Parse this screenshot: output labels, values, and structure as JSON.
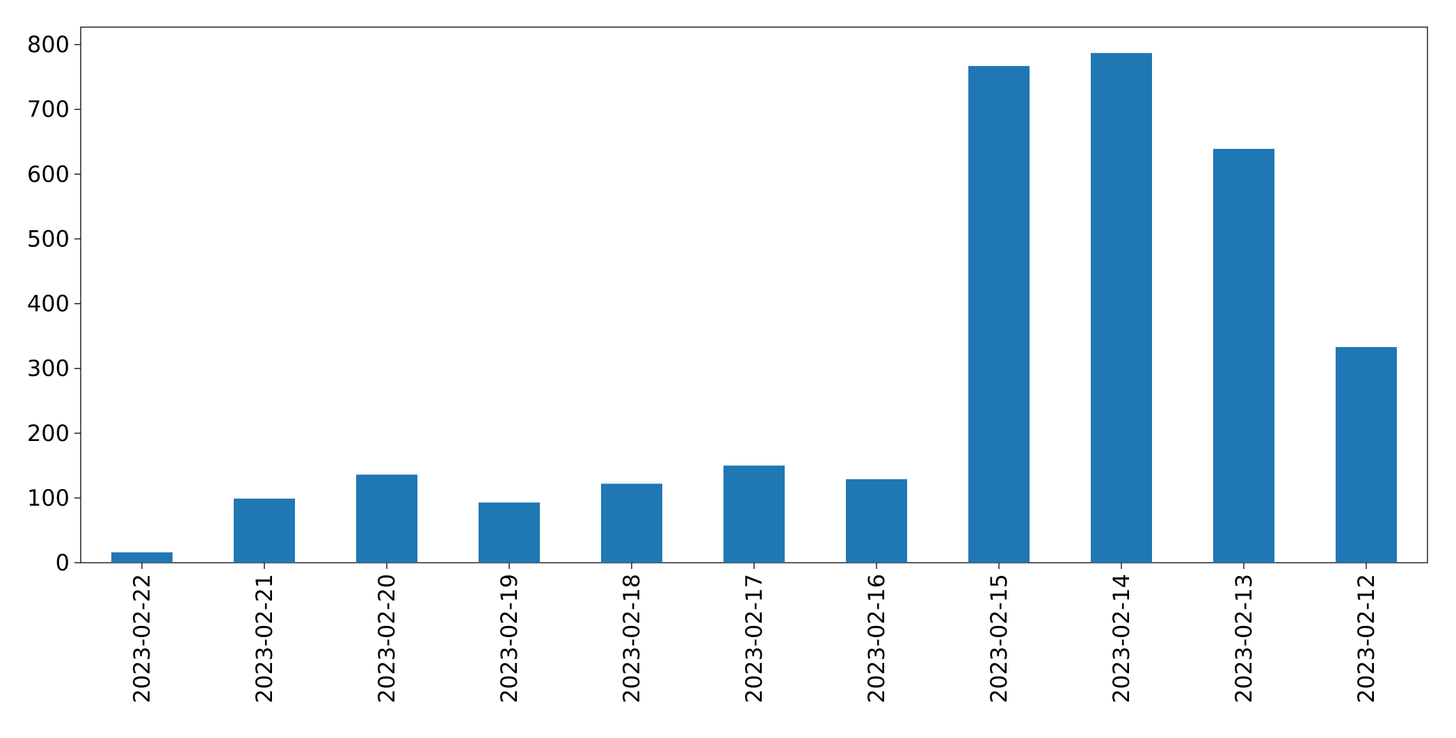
{
  "chart_data": {
    "type": "bar",
    "categories": [
      "2023-02-22",
      "2023-02-21",
      "2023-02-20",
      "2023-02-19",
      "2023-02-18",
      "2023-02-17",
      "2023-02-16",
      "2023-02-15",
      "2023-02-14",
      "2023-02-13",
      "2023-02-12"
    ],
    "values": [
      16,
      99,
      136,
      93,
      122,
      150,
      129,
      767,
      787,
      639,
      333
    ],
    "color": "#1f77b4",
    "ylim": [
      0,
      827
    ],
    "yticks": [
      0,
      100,
      200,
      300,
      400,
      500,
      600,
      700,
      800
    ],
    "grid": false
  }
}
